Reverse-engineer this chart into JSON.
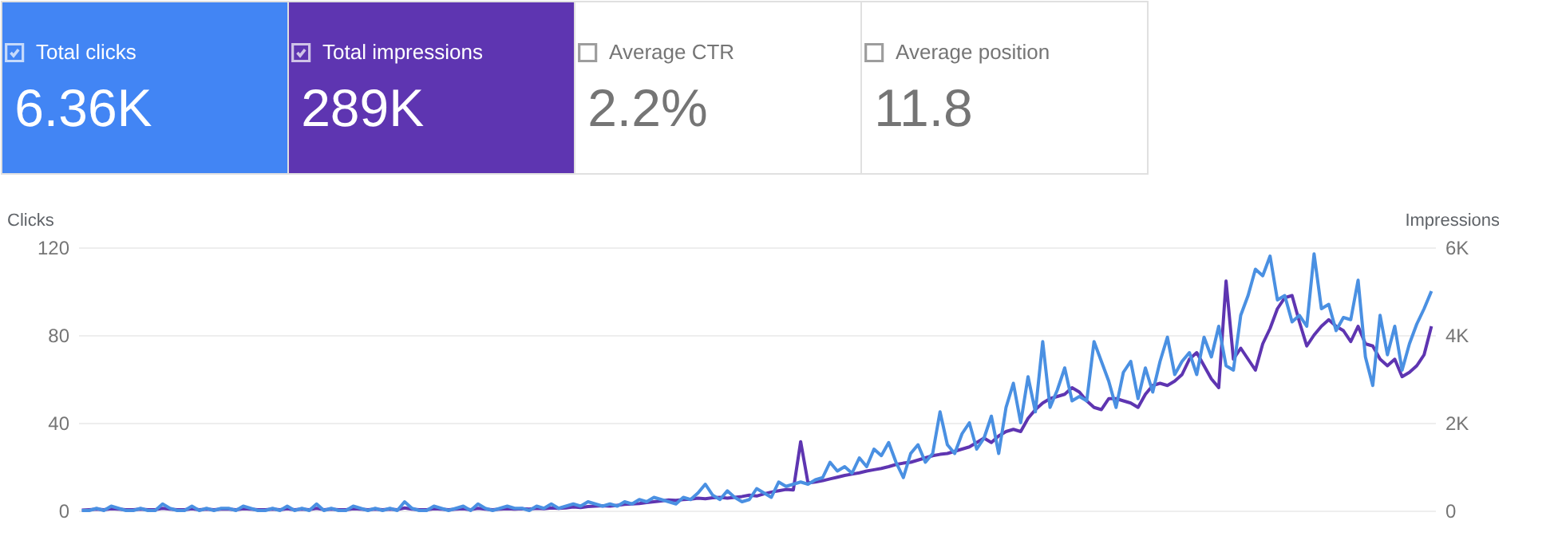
{
  "chart_data": [
    {
      "type": "other",
      "categories": [
        "Total clicks",
        "Total impressions",
        "Average CTR",
        "Average position"
      ],
      "values": [
        6.36,
        289,
        2.2,
        11.8
      ],
      "value_labels": [
        "6.36K",
        "289K",
        "2.2%",
        "11.8"
      ],
      "colors": [
        "#4285f4",
        "#5e35b1",
        "#ffffff",
        "#ffffff"
      ]
    },
    {
      "type": "line",
      "ylabel": "Clicks",
      "y2label": "Impressions",
      "categories": [
        null,
        null,
        null,
        null,
        null,
        null,
        null,
        null,
        null,
        null,
        null,
        null,
        null,
        null,
        null,
        null,
        null,
        null,
        null,
        null,
        null,
        null,
        null,
        null,
        null,
        null,
        null,
        null,
        null,
        null,
        null,
        null,
        null,
        null,
        null,
        null,
        null,
        null,
        null,
        null,
        null,
        null,
        null,
        null,
        null,
        null,
        null,
        null,
        null,
        null,
        null,
        null,
        null,
        null,
        null,
        null,
        null,
        null,
        null,
        null,
        null,
        null,
        null,
        null,
        null,
        null,
        null,
        null,
        null,
        null,
        null,
        null,
        null,
        null,
        null,
        null,
        null,
        null,
        null,
        null,
        null,
        null,
        null,
        null,
        null,
        null,
        null,
        null,
        null,
        null,
        null,
        null,
        null,
        null,
        null,
        null,
        null,
        null,
        null,
        null,
        null,
        null,
        null,
        null,
        null,
        null,
        null,
        null,
        null,
        null,
        null,
        null,
        null,
        null,
        null,
        null,
        null,
        null,
        null,
        null,
        null,
        null,
        null,
        null,
        null,
        null,
        null,
        null,
        null,
        null,
        null,
        null,
        null,
        null,
        null,
        null,
        null,
        null,
        null,
        null,
        null,
        null,
        null,
        null,
        null,
        null,
        null,
        null,
        null,
        null,
        null,
        null,
        null,
        null,
        null,
        null,
        null,
        null,
        null,
        null,
        null,
        null,
        null,
        null,
        null,
        null,
        null,
        null,
        null,
        null,
        null,
        null,
        null,
        null,
        null,
        null,
        null,
        null,
        null,
        null,
        null,
        null,
        null,
        null,
        null
      ],
      "series": [
        {
          "color": "#5e35b1",
          "axis": "y2",
          "values": [
            10,
            20,
            30,
            20,
            40,
            30,
            20,
            20,
            30,
            20,
            20,
            50,
            30,
            20,
            20,
            40,
            20,
            30,
            20,
            30,
            30,
            20,
            40,
            30,
            20,
            20,
            30,
            20,
            40,
            20,
            30,
            20,
            50,
            20,
            30,
            20,
            20,
            40,
            30,
            20,
            30,
            20,
            30,
            20,
            60,
            30,
            20,
            20,
            40,
            30,
            20,
            30,
            40,
            20,
            50,
            30,
            20,
            30,
            40,
            30,
            40,
            30,
            50,
            40,
            60,
            50,
            60,
            80,
            70,
            90,
            100,
            110,
            100,
            120,
            140,
            150,
            160,
            180,
            200,
            220,
            240,
            230,
            250,
            260,
            280,
            270,
            290,
            300,
            280,
            300,
            320,
            350,
            330,
            380,
            420,
            450,
            480,
            470,
            1570,
            630,
            650,
            680,
            720,
            760,
            800,
            830,
            860,
            900,
            930,
            960,
            1000,
            1050,
            1080,
            1100,
            1150,
            1200,
            1250,
            1280,
            1300,
            1350,
            1400,
            1450,
            1550,
            1650,
            1550,
            1700,
            1800,
            1850,
            1800,
            2100,
            2300,
            2450,
            2550,
            2600,
            2650,
            2800,
            2700,
            2500,
            2350,
            2300,
            2550,
            2550,
            2500,
            2450,
            2350,
            2650,
            2850,
            2900,
            2850,
            2950,
            3100,
            3450,
            3600,
            3300,
            3000,
            2800,
            5230,
            3450,
            3700,
            3450,
            3200,
            3800,
            4150,
            4600,
            4850,
            4900,
            4300,
            3750,
            4000,
            4200,
            4350,
            4200,
            4100,
            3850,
            4200,
            3800,
            3750,
            3450,
            3300,
            3450,
            3050,
            3150,
            3300,
            3550,
            4200
          ]
        },
        {
          "color": "#4a90e2",
          "axis": "y",
          "values": [
            0,
            0,
            1,
            0,
            2,
            1,
            0,
            0,
            1,
            0,
            0,
            3,
            1,
            0,
            0,
            2,
            0,
            1,
            0,
            1,
            1,
            0,
            2,
            1,
            0,
            0,
            1,
            0,
            2,
            0,
            1,
            0,
            3,
            0,
            1,
            0,
            0,
            2,
            1,
            0,
            1,
            0,
            1,
            0,
            4,
            1,
            0,
            0,
            2,
            1,
            0,
            1,
            2,
            0,
            3,
            1,
            0,
            1,
            2,
            1,
            1,
            0,
            2,
            1,
            3,
            1,
            2,
            3,
            2,
            4,
            3,
            2,
            3,
            2,
            4,
            3,
            5,
            4,
            6,
            5,
            4,
            3,
            6,
            5,
            8,
            12,
            7,
            5,
            9,
            6,
            4,
            5,
            10,
            8,
            6,
            13,
            11,
            12,
            13,
            12,
            14,
            15,
            22,
            18,
            20,
            17,
            24,
            20,
            28,
            25,
            31,
            22,
            15,
            26,
            30,
            22,
            26,
            45,
            30,
            26,
            35,
            40,
            28,
            33,
            43,
            26,
            47,
            58,
            40,
            61,
            45,
            77,
            47,
            55,
            65,
            50,
            52,
            50,
            77,
            68,
            59,
            47,
            63,
            68,
            51,
            65,
            54,
            68,
            79,
            62,
            68,
            72,
            62,
            79,
            70,
            84,
            66,
            64,
            89,
            98,
            110,
            107,
            116,
            96,
            98,
            86,
            89,
            84,
            117,
            92,
            94,
            82,
            88,
            87,
            105,
            70,
            57,
            89,
            71,
            84,
            64,
            76,
            85,
            92,
            100
          ]
        }
      ],
      "ylim": [
        0,
        120
      ],
      "yticks": [
        0,
        40,
        80,
        120
      ],
      "y2lim": [
        0,
        6000
      ],
      "y2ticks": [
        0,
        {
          "value": 2000,
          "label": "2K"
        },
        {
          "value": 4000,
          "label": "4K"
        },
        {
          "value": 6000,
          "label": "6K"
        }
      ],
      "grid": "y",
      "line_style": "solid",
      "marker": "none"
    }
  ]
}
